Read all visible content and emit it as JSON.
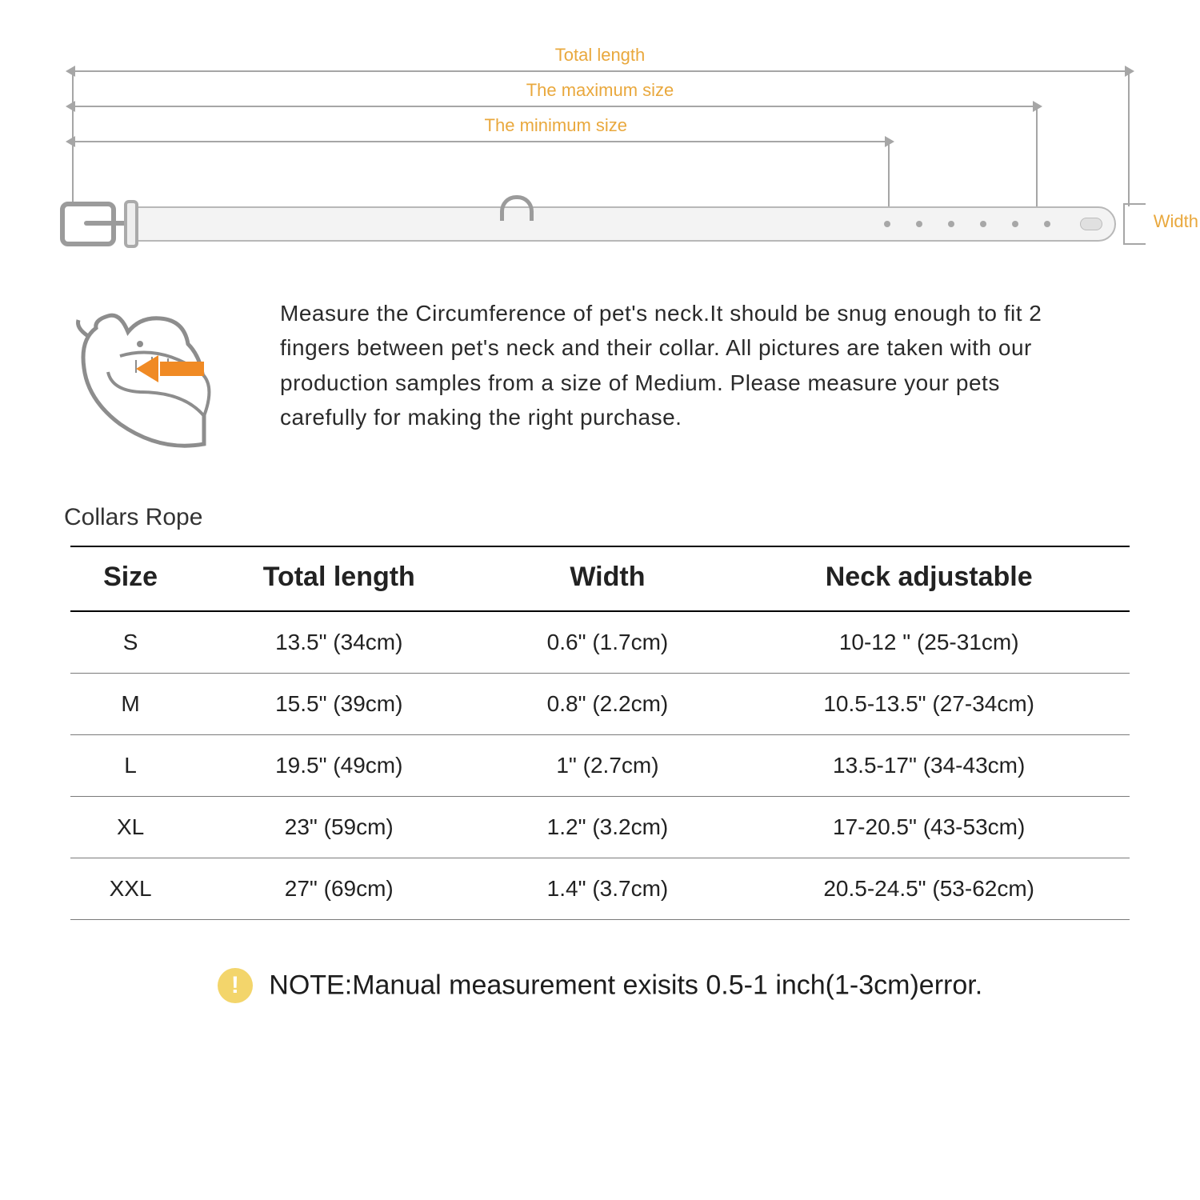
{
  "diagram": {
    "labels": {
      "total_length": "Total length",
      "max_size": "The maximum size",
      "min_size": "The minimum size",
      "width": "Width"
    },
    "colors": {
      "label_color": "#e9a83d",
      "line_color": "#a6a6a6",
      "collar_fill": "#f3f3f3",
      "collar_border": "#b8b8b8",
      "metal": "#9b9b9b"
    }
  },
  "instruction": {
    "text": "Measure the Circumference of pet's neck.It should be snug enough to fit 2 fingers between pet's neck and their collar. All pictures are taken with our production samples from a size of Medium. Please measure your pets carefully for making the right purchase."
  },
  "table": {
    "title": "Collars Rope",
    "columns": [
      "Size",
      "Total length",
      "Width",
      "Neck adjustable"
    ],
    "rows": [
      [
        "S",
        "13.5\" (34cm)",
        "0.6\" (1.7cm)",
        "10-12 \" (25-31cm)"
      ],
      [
        "M",
        "15.5\" (39cm)",
        "0.8\" (2.2cm)",
        "10.5-13.5\" (27-34cm)"
      ],
      [
        "L",
        "19.5\" (49cm)",
        "1\" (2.7cm)",
        "13.5-17\" (34-43cm)"
      ],
      [
        "XL",
        "23\" (59cm)",
        "1.2\" (3.2cm)",
        "17-20.5\" (43-53cm)"
      ],
      [
        "XXL",
        "27\" (69cm)",
        "1.4\" (3.7cm)",
        "20.5-24.5\" (53-62cm)"
      ]
    ],
    "header_fontsize": 34,
    "cell_fontsize": 28,
    "border_color": "#7a7a7a",
    "header_border_color": "#000000"
  },
  "note": {
    "prefix": "NOTE:",
    "text": "Manual measurement exisits 0.5-1 inch(1-3cm)error.",
    "icon_bg": "#f3d56b",
    "icon_glyph": "!"
  }
}
